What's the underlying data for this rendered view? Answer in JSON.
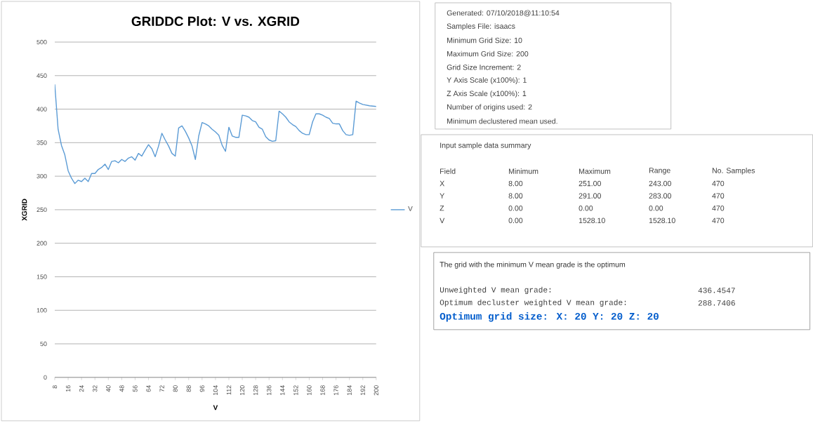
{
  "chart_data": [
    {
      "type": "line",
      "title": "GRIDDC Plot: V vs. XGRID",
      "xlabel": "V",
      "ylabel": "XGRID",
      "x": [
        8,
        10,
        12,
        14,
        16,
        18,
        20,
        22,
        24,
        26,
        28,
        30,
        32,
        34,
        36,
        38,
        40,
        42,
        44,
        46,
        48,
        50,
        52,
        54,
        56,
        58,
        60,
        62,
        64,
        66,
        68,
        70,
        72,
        74,
        76,
        78,
        80,
        82,
        84,
        86,
        88,
        90,
        92,
        94,
        96,
        98,
        100,
        102,
        104,
        106,
        108,
        110,
        112,
        114,
        116,
        118,
        120,
        122,
        124,
        126,
        128,
        130,
        132,
        134,
        136,
        138,
        140,
        142,
        144,
        146,
        148,
        150,
        152,
        154,
        156,
        158,
        160,
        162,
        164,
        166,
        168,
        170,
        172,
        174,
        176,
        178,
        180,
        182,
        184,
        186,
        188,
        190,
        192,
        196,
        200
      ],
      "series": [
        {
          "name": "V",
          "color": "#5b9bd5",
          "values": [
            437,
            370,
            346,
            332,
            308,
            297,
            289,
            294,
            292,
            297,
            292,
            304,
            304,
            310,
            313,
            318,
            310,
            322,
            323,
            320,
            325,
            322,
            327,
            329,
            324,
            334,
            330,
            339,
            347,
            341,
            329,
            345,
            364,
            354,
            345,
            334,
            330,
            372,
            375,
            367,
            357,
            345,
            325,
            360,
            380,
            378,
            375,
            370,
            366,
            361,
            346,
            337,
            373,
            360,
            358,
            358,
            391,
            390,
            388,
            383,
            381,
            373,
            370,
            359,
            354,
            352,
            353,
            397,
            393,
            388,
            381,
            377,
            374,
            368,
            364,
            362,
            362,
            381,
            393,
            393,
            391,
            388,
            386,
            379,
            378,
            378,
            368,
            362,
            361,
            362,
            412,
            409,
            407,
            405,
            404
          ]
        }
      ],
      "xlim": [
        8,
        200
      ],
      "xticks": [
        8,
        16,
        24,
        32,
        40,
        48,
        56,
        64,
        72,
        80,
        88,
        96,
        104,
        112,
        120,
        128,
        136,
        144,
        152,
        160,
        168,
        176,
        184,
        192,
        200
      ],
      "ylim": [
        0,
        500
      ],
      "yticks": [
        0,
        50,
        100,
        150,
        200,
        250,
        300,
        350,
        400,
        450,
        500
      ],
      "grid": "y",
      "legend": "right"
    },
    {
      "type": "other",
      "annotations": [
        "Generated: 07/10/2018@11:10:54",
        "Samples File: isaacs",
        "Minimum Grid Size: 10",
        "Maximum Grid Size: 200",
        "Grid Size Increment: 2",
        "Y Axis Scale (x100%): 1",
        "Z Axis Scale (x100%): 1",
        "Number of origins used: 2",
        "Minimum declustered mean used."
      ]
    },
    {
      "type": "other",
      "title": "Input sample data summary",
      "annotations": [
        "Field",
        "Minimum",
        "Maximum",
        "Range",
        "No. Samples",
        "X",
        "8.00",
        "251.00",
        "243.00",
        "470",
        "Y",
        "8.00",
        "291.00",
        "283.00",
        "470",
        "Z",
        "0.00",
        "0.00",
        "0.00",
        "470",
        "V",
        "0.00",
        "1528.10",
        "1528.10",
        "470"
      ]
    },
    {
      "type": "other",
      "title": "The grid with the minimum V mean grade is the optimum",
      "annotations": [
        "Unweighted V mean grade:",
        "436.4547",
        "Optimum decluster weighted V mean grade:",
        "288.7406",
        "Optimum grid size: X: 20 Y: 20  Z: 20"
      ]
    }
  ]
}
